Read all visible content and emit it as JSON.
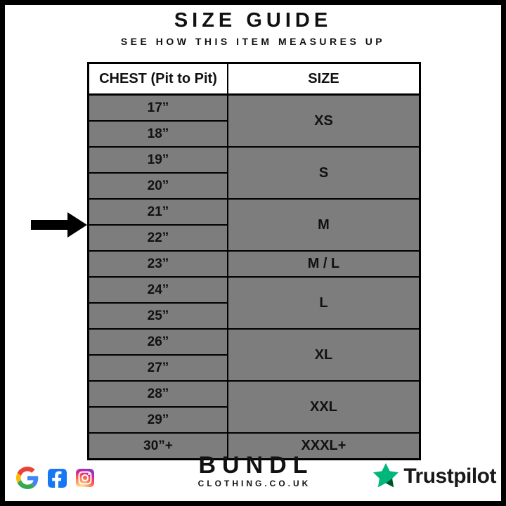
{
  "header": {
    "title": "SIZE GUIDE",
    "subtitle": "SEE HOW THIS ITEM MEASURES UP"
  },
  "table": {
    "columns": [
      "CHEST (Pit to Pit)",
      "SIZE"
    ],
    "rows": [
      {
        "chest": "17”",
        "highlighted": false,
        "no_divider": false,
        "size": {
          "label": "XS",
          "span": 2,
          "highlighted": false
        }
      },
      {
        "chest": "18”",
        "highlighted": false,
        "no_divider": false
      },
      {
        "chest": "19”",
        "highlighted": false,
        "no_divider": false,
        "size": {
          "label": "S",
          "span": 2,
          "highlighted": false
        }
      },
      {
        "chest": "20”",
        "highlighted": false,
        "no_divider": false
      },
      {
        "chest": "21”",
        "highlighted": false,
        "no_divider": true,
        "size": {
          "label": "M",
          "span": 2,
          "highlighted": true
        }
      },
      {
        "chest": "22”",
        "highlighted": true,
        "no_divider": true,
        "arrow": true
      },
      {
        "chest": "23”",
        "highlighted": false,
        "no_divider": false,
        "size": {
          "label": "M / L",
          "span": 1,
          "highlighted": false
        }
      },
      {
        "chest": "24”",
        "highlighted": false,
        "no_divider": false,
        "size": {
          "label": "L",
          "span": 2,
          "highlighted": false
        }
      },
      {
        "chest": "25”",
        "highlighted": false,
        "no_divider": false
      },
      {
        "chest": "26”",
        "highlighted": false,
        "no_divider": false,
        "size": {
          "label": "XL",
          "span": 2,
          "highlighted": false
        }
      },
      {
        "chest": "27”",
        "highlighted": false,
        "no_divider": false
      },
      {
        "chest": "28”",
        "highlighted": false,
        "no_divider": false,
        "size": {
          "label": "XXL",
          "span": 2,
          "highlighted": false
        }
      },
      {
        "chest": "29”",
        "highlighted": false,
        "no_divider": false
      },
      {
        "chest": "30”+",
        "highlighted": false,
        "no_divider": false,
        "size": {
          "label": "XXXL+",
          "span": 1,
          "highlighted": false
        }
      }
    ]
  },
  "chart_data": {
    "type": "table",
    "title": "SIZE GUIDE",
    "subtitle": "SEE HOW THIS ITEM MEASURES UP",
    "columns": [
      "CHEST (Pit to Pit)",
      "SIZE"
    ],
    "mapping": [
      {
        "chest_inches": [
          "17”",
          "18”"
        ],
        "size": "XS"
      },
      {
        "chest_inches": [
          "19”",
          "20”"
        ],
        "size": "S"
      },
      {
        "chest_inches": [
          "21”",
          "22”"
        ],
        "size": "M",
        "highlighted": true
      },
      {
        "chest_inches": [
          "23”"
        ],
        "size": "M / L"
      },
      {
        "chest_inches": [
          "24”",
          "25”"
        ],
        "size": "L"
      },
      {
        "chest_inches": [
          "26”",
          "27”"
        ],
        "size": "XL"
      },
      {
        "chest_inches": [
          "28”",
          "29”"
        ],
        "size": "XXL"
      },
      {
        "chest_inches": [
          "30”+"
        ],
        "size": "XXXL+"
      }
    ],
    "highlighted_measurement": "22”",
    "highlighted_size": "M",
    "arrow_points_at": "22”"
  },
  "footer": {
    "brand": {
      "name": "BUNDL",
      "domain": "CLOTHING.CO.UK"
    },
    "social_icons": [
      "google-icon",
      "facebook-icon",
      "instagram-icon"
    ],
    "trustpilot": {
      "label": "Trustpilot"
    }
  },
  "colors": {
    "row_gray": "#7D7D7D",
    "highlight_white": "#FFFFFF",
    "border_black": "#000000",
    "trustpilot_green": "#00B67A",
    "trustpilot_dark_green": "#005128",
    "facebook_blue": "#1877F2",
    "google_blue": "#4285F4",
    "google_red": "#EA4335",
    "google_yellow": "#FBBC05",
    "google_green": "#34A853"
  }
}
